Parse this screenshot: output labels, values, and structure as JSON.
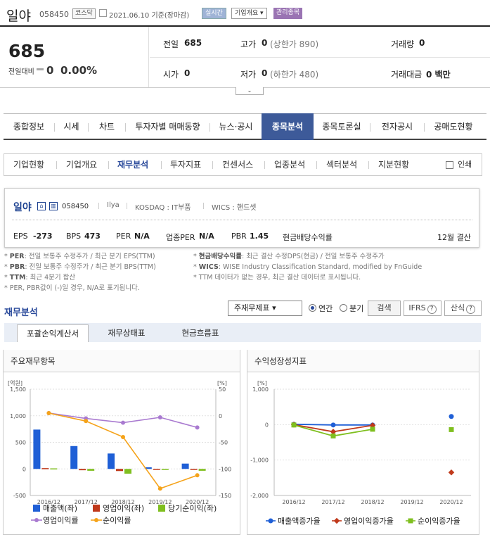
{
  "header": {
    "name": "일야",
    "code": "058450",
    "market": "코스닥",
    "date": "2021.06.10",
    "date_suffix": "기준(장마감)",
    "realtime": "실시간",
    "overview": "기업개요 ▾",
    "managed": "관리종목"
  },
  "price": {
    "current": "685",
    "change_label": "전일대비",
    "change": "0",
    "pct": "0.00%"
  },
  "stats": [
    {
      "label": "전일",
      "value": "685",
      "extra": ""
    },
    {
      "label": "고가",
      "value": "0",
      "extra": "(상한가 890)"
    },
    {
      "label": "거래량",
      "value": "0",
      "extra": ""
    },
    {
      "label": "시가",
      "value": "0",
      "extra": ""
    },
    {
      "label": "저가",
      "value": "0",
      "extra": "(하한가 480)"
    },
    {
      "label": "거래대금",
      "value": "0 백만",
      "extra": ""
    }
  ],
  "main_tabs": [
    "종합정보",
    "시세",
    "차트",
    "투자자별 매매동향",
    "뉴스·공시",
    "종목분석",
    "종목토론실",
    "전자공시",
    "공매도현황"
  ],
  "sub_tabs": [
    "기업현황",
    "기업개요",
    "재무분석",
    "투자지표",
    "컨센서스",
    "업종분석",
    "섹터분석",
    "지분현황"
  ],
  "print_label": "인쇄",
  "company": {
    "name": "일야",
    "code": "058450",
    "eng": "Ilya",
    "market": "KOSDAQ : IT부품",
    "wics": "WICS : 핸드셋",
    "eps_label": "EPS",
    "eps": "-273",
    "bps_label": "BPS",
    "bps": "473",
    "per_label": "PER",
    "per": "N/A",
    "iper_label": "업종PER",
    "iper": "N/A",
    "pbr_label": "PBR",
    "pbr": "1.45",
    "div_label": "현금배당수익률",
    "settle": "12월 결산"
  },
  "notes": {
    "left": [
      {
        "k": "PER",
        "t": ": 전일 보통주 수정주가 / 최근 분기 EPS(TTM)"
      },
      {
        "k": "PBR",
        "t": ": 전일 보통주 수정주가 / 최근 분기 BPS(TTM)"
      },
      {
        "k": "TTM",
        "t": ": 최근 4분기 합산"
      },
      {
        "k": "",
        "t": "PER, PBR값이 (-)일 경우, N/A로 표기됩니다."
      }
    ],
    "right": [
      {
        "k": "현금배당수익률",
        "t": ": 최근 결산 수정DPS(현금) / 전일 보통주 수정주가"
      },
      {
        "k": "WICS",
        "t": ": WISE Industry Classification Standard, modified by FnGuide"
      },
      {
        "k": "",
        "t": "TTM 데이터가 없는 경우, 최근 결산 데이터로 표시됩니다."
      }
    ]
  },
  "analysis": {
    "title": "재무분석",
    "select": "주재무제표 ▾",
    "annual": "연간",
    "quarter": "분기",
    "search": "검색",
    "ifrs": "IFRS",
    "note": "산식",
    "tabs": [
      "포괄손익계산서",
      "재무상태표",
      "현금흐름표"
    ]
  },
  "panels": {
    "left_title": "주요재무항목",
    "right_title": "수익성장성지표"
  },
  "colors": {
    "sales": "#1f5fd6",
    "op": "#c0391b",
    "net": "#7fbf1f",
    "opm": "#a97ad0",
    "npm": "#f5a31a"
  },
  "chart_data": [
    {
      "type": "bar",
      "categories": [
        "2016/12",
        "2017/12",
        "2018/12",
        "2019/12",
        "2020/12"
      ],
      "ylabel_left": "[억원]",
      "ylabel_right": "[%]",
      "ylim": [
        -500,
        1500
      ],
      "ylim_right": [
        -150,
        50
      ],
      "yticks": [
        "1,500",
        "1,000",
        "500",
        "0",
        "-500"
      ],
      "yticks_right": [
        "50",
        "0",
        "-50",
        "-100",
        "-150"
      ],
      "series": [
        {
          "name": "매출액(좌)",
          "values": [
            740,
            430,
            290,
            30,
            100
          ],
          "axis": "left",
          "kind": "bar"
        },
        {
          "name": "영업이익(좌)",
          "values": [
            15,
            -25,
            -40,
            -10,
            -20
          ],
          "axis": "left",
          "kind": "bar"
        },
        {
          "name": "당기순이익(좌)",
          "values": [
            10,
            -35,
            -90,
            -15,
            -35
          ],
          "axis": "left",
          "kind": "bar"
        },
        {
          "name": "영업이익률",
          "values": [
            5,
            -5,
            -13,
            -3,
            -22
          ],
          "axis": "right",
          "kind": "line"
        },
        {
          "name": "순이익률",
          "values": [
            5,
            -10,
            -40,
            -137,
            -112
          ],
          "axis": "right",
          "kind": "line"
        }
      ]
    },
    {
      "type": "line",
      "categories": [
        "2016/12",
        "2017/12",
        "2018/12",
        "2019/12",
        "2020/12"
      ],
      "ylabel": "[%]",
      "ylim": [
        -2000,
        1000
      ],
      "yticks": [
        "1,000",
        "0",
        "-1,000",
        "-2,000"
      ],
      "series": [
        {
          "name": "매출액증가율",
          "values": [
            10,
            -10,
            -10,
            null,
            230
          ]
        },
        {
          "name": "영업이익증가율",
          "values": [
            0,
            -200,
            -20,
            null,
            -1350
          ]
        },
        {
          "name": "순이익증가율",
          "values": [
            -10,
            -320,
            -130,
            null,
            -140
          ]
        }
      ]
    }
  ]
}
